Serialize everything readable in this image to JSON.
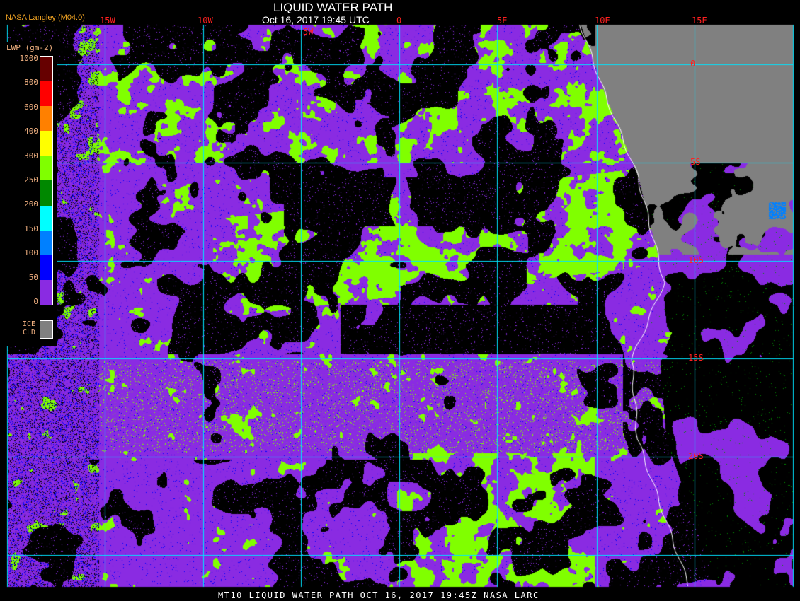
{
  "header": {
    "title": "LIQUID WATER PATH",
    "datetime": "Oct 16, 2017 19:45 UTC",
    "provider": "NASA Langley (M04.0)"
  },
  "longitude_labels": [
    "15W",
    "10W",
    "5W",
    "0",
    "5E",
    "10E",
    "15E"
  ],
  "latitude_labels": [
    "0",
    "5S",
    "10S",
    "15S",
    "20S"
  ],
  "legend": {
    "title": "LWP (gm-2)",
    "levels": [
      "1000",
      "800",
      "600",
      "400",
      "300",
      "250",
      "200",
      "150",
      "100",
      "50",
      "0"
    ],
    "bands": [
      {
        "range": "800-1000",
        "color": "#660000"
      },
      {
        "range": "600-800",
        "color": "#ff0000"
      },
      {
        "range": "400-600",
        "color": "#ff8000"
      },
      {
        "range": "300-400",
        "color": "#ffff00"
      },
      {
        "range": "250-300",
        "color": "#80ff00"
      },
      {
        "range": "200-250",
        "color": "#008800"
      },
      {
        "range": "150-200",
        "color": "#00ffff"
      },
      {
        "range": "100-150",
        "color": "#0080ff"
      },
      {
        "range": "50-100",
        "color": "#0000ff"
      },
      {
        "range": "0-50",
        "color": "#8a2be2"
      }
    ],
    "ice_label_1": "ICE",
    "ice_label_2": "CLD",
    "ice_color": "#808080"
  },
  "colors": {
    "grid": "#00e5ff",
    "coast": "#ffffff",
    "grid_label": "#ff2020"
  },
  "caption": "MT10  LIQUID WATER PATH   OCT 16, 2017 19:45Z   NASA LARC"
}
